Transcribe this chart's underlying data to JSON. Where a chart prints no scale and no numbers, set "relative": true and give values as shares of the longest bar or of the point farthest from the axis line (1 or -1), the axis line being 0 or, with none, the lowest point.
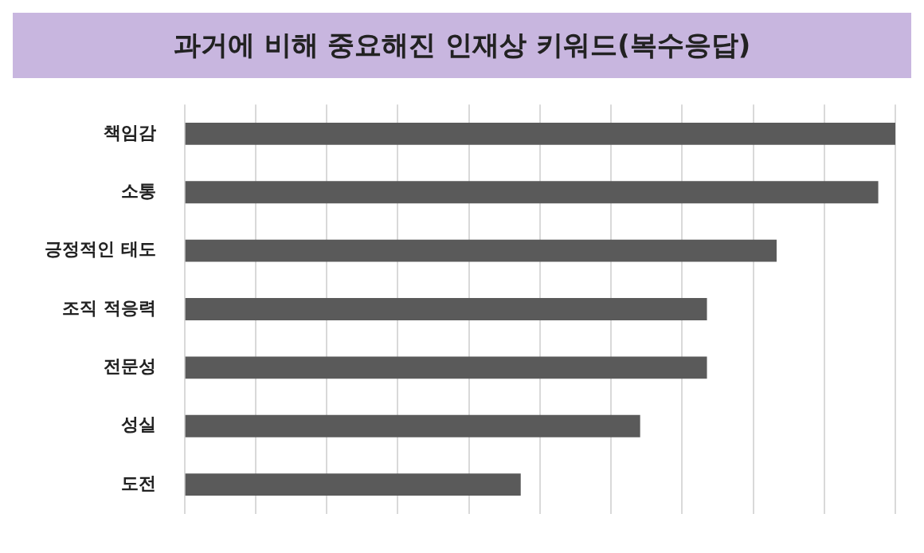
{
  "chart_data": {
    "type": "bar",
    "title": "과거에 비해 중요해진 인재상 키워드(복수응답)",
    "orientation": "horizontal",
    "relative": true,
    "grid": "x",
    "categories": [
      "책임감",
      "소통",
      "긍정적인 태도",
      "조직 적응력",
      "전문성",
      "성실",
      "도전"
    ],
    "values": [
      1,
      0.976,
      0.833,
      0.735,
      0.735,
      0.641,
      0.473
    ],
    "color": "#5a5a5a"
  }
}
